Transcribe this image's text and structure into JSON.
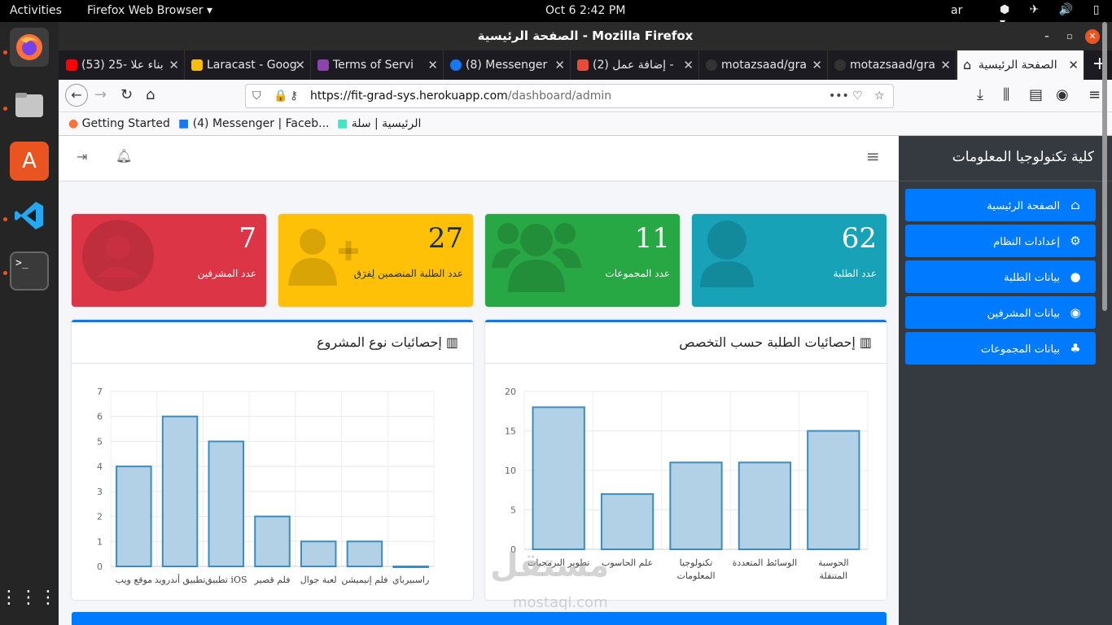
{
  "topbar": {
    "activities": "Activities",
    "app": "Firefox Web Browser ▾",
    "clock": "Oct 6  2:42 PM",
    "lang": "ar",
    "tray": "⬢ ✈ 🔊 ▯ ▾"
  },
  "window": {
    "title": "الصفحة الرئيسية - Mozilla Firefox"
  },
  "tabs": [
    {
      "label": "(53) 25- بناء علا",
      "fav_color": "#ff0000"
    },
    {
      "label": "Laracast - Goog",
      "fav_color": "#fbbc04"
    },
    {
      "label": "Terms of Servi",
      "fav_color": "#8e44ad"
    },
    {
      "label": "(8) Messenger",
      "fav_color": "#1877f2"
    },
    {
      "label": "(2) إضافة عمل -",
      "fav_color": "#e74c3c"
    },
    {
      "label": "motazsaad/gra",
      "fav_color": "#333333"
    },
    {
      "label": "motazsaad/gra",
      "fav_color": "#333333"
    },
    {
      "label": "الصفحة الرئيسية",
      "fav_color": "#222222"
    }
  ],
  "url": {
    "host": "https://fit-grad-sys.herokuapp.com",
    "path": "/dashboard/admin"
  },
  "bookmarks": [
    {
      "label": "Getting Started"
    },
    {
      "label": "(4) Messenger | Faceb..."
    },
    {
      "label": "الرئيسية | سلة"
    }
  ],
  "sidebar": {
    "brand": "كلية تكنولوجيا المعلومات",
    "items": [
      {
        "label": "الصفحة الرئيسية",
        "icon": "home-icon",
        "glyph": "⌂"
      },
      {
        "label": "إعدادات النظام",
        "icon": "cogs-icon",
        "glyph": "⚙"
      },
      {
        "label": "بيانات الطلبة",
        "icon": "user-icon",
        "glyph": "●"
      },
      {
        "label": "بيانات المشرفين",
        "icon": "user-circle-icon",
        "glyph": "◉"
      },
      {
        "label": "بيانات المجموعات",
        "icon": "users-icon",
        "glyph": "♣"
      }
    ]
  },
  "cards": [
    {
      "value": "7",
      "label": "عدد المشرفين",
      "color": "#dc3545"
    },
    {
      "value": "27",
      "label": "عدد الطلبة المنضمين لِفرَق",
      "color": "#ffc107"
    },
    {
      "value": "11",
      "label": "عدد المجموعات",
      "color": "#28a745"
    },
    {
      "value": "62",
      "label": "عدد الطلبة",
      "color": "#17a2b8"
    }
  ],
  "charts": {
    "project_title": "إحصائيات نوع المشروع",
    "specialty_title": "إحصائيات الطلبة حسب التخصص"
  },
  "chart_data": [
    {
      "type": "bar",
      "title": "إحصائيات نوع المشروع",
      "categories": [
        "موقع ويب",
        "تطبيق أندرويد",
        "تطبيق iOS",
        "فلم قصير",
        "لعبة جوال",
        "فلم إنيميشن",
        "راسبيرباي"
      ],
      "values": [
        4,
        6,
        5,
        2,
        1,
        1,
        0
      ],
      "ylim": [
        0,
        7
      ],
      "yticks": [
        0,
        1,
        2,
        3,
        4,
        5,
        6,
        7
      ],
      "grid": true,
      "bar_color": "#b3d1e6",
      "edge_color": "#3c8dbc"
    },
    {
      "type": "bar",
      "title": "إحصائيات الطلبة حسب التخصص",
      "categories": [
        "تطوير البرمجيات",
        "علم الحاسوب",
        "تكنولوجيا المعلومات",
        "الوسائط المتعددة",
        "الحوسبة المتنقلة"
      ],
      "values": [
        18,
        7,
        11,
        11,
        15
      ],
      "ylim": [
        0,
        20
      ],
      "yticks": [
        0,
        5,
        10,
        15,
        20
      ],
      "grid": true,
      "bar_color": "#b3d1e6",
      "edge_color": "#3c8dbc"
    }
  ],
  "watermark": {
    "main": "مستقل",
    "sub": "mostaql.com"
  }
}
